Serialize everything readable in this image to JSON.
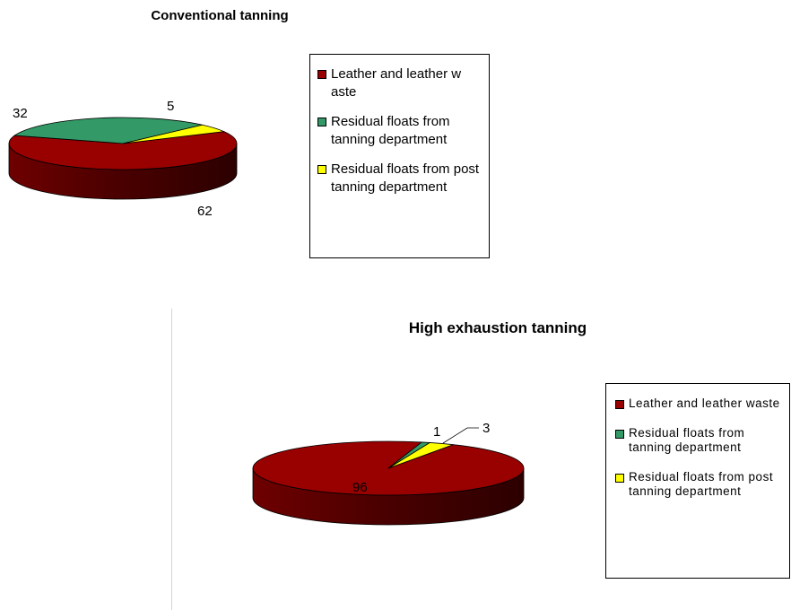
{
  "chart_data": [
    {
      "type": "pie",
      "title": "Conventional tanning",
      "categories": [
        "Leather and leather w aste",
        "Residual floats from tanning department",
        "Residual floats from post tanning department"
      ],
      "values": [
        62,
        32,
        5
      ],
      "data_labels": [
        "62",
        "32",
        "5"
      ],
      "colors": [
        "#990000",
        "#339966",
        "#ffff00"
      ],
      "legend_position": "right",
      "style": "3d"
    },
    {
      "type": "pie",
      "title": "High exhaustion tanning",
      "categories": [
        "Leather and leather waste",
        "Residual floats from tanning department",
        "Residual floats from post tanning department"
      ],
      "values": [
        96,
        1,
        3
      ],
      "data_labels": [
        "96",
        "1",
        "3"
      ],
      "colors": [
        "#990000",
        "#339966",
        "#ffff00"
      ],
      "legend_position": "right",
      "style": "3d"
    }
  ]
}
